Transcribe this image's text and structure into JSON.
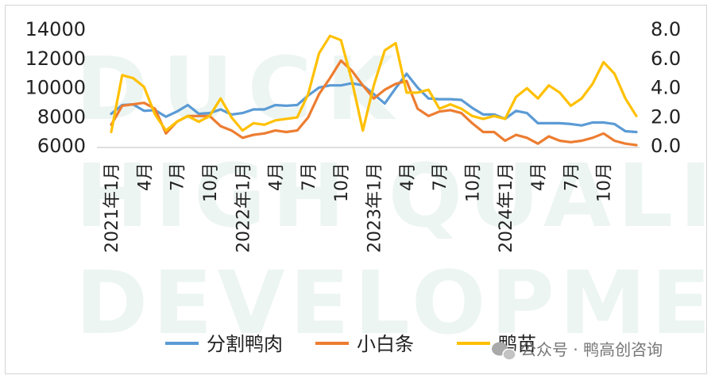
{
  "chart_data": {
    "type": "line",
    "title": "",
    "xlabel": "",
    "ylabel": "",
    "y_left": {
      "min": 6000,
      "max": 14000,
      "ticks": [
        "6000",
        "8000",
        "10000",
        "12000",
        "14000"
      ]
    },
    "y_right": {
      "min": 0,
      "max": 8,
      "ticks": [
        "0.0",
        "2.0",
        "4.0",
        "6.0",
        "8.0"
      ]
    },
    "x_tick_labels": [
      "2021年1月",
      "4月",
      "7月",
      "10月",
      "2022年1月",
      "4月",
      "7月",
      "10月",
      "2023年1月",
      "4月",
      "7月",
      "10月",
      "2024年1月",
      "4月",
      "7月",
      "10月"
    ],
    "x_tick_month_index": [
      0,
      3,
      6,
      9,
      12,
      15,
      18,
      21,
      24,
      27,
      30,
      33,
      36,
      39,
      42,
      45
    ],
    "months": 48,
    "legend_position": "bottom",
    "grid": false,
    "series": [
      {
        "name": "分割鸭肉",
        "axis": "left",
        "color": "#5b9bd5",
        "values": [
          8150,
          8750,
          8800,
          8350,
          8400,
          7950,
          8300,
          8750,
          8150,
          8200,
          8450,
          8100,
          8200,
          8450,
          8450,
          8750,
          8700,
          8750,
          9400,
          9950,
          10100,
          10100,
          10250,
          10100,
          9500,
          8850,
          9900,
          10900,
          9950,
          9200,
          9150,
          9150,
          9100,
          8550,
          8100,
          8100,
          7800,
          8350,
          8200,
          7500,
          7500,
          7500,
          7450,
          7350,
          7550,
          7550,
          7450,
          6950,
          6900
        ]
      },
      {
        "name": "小白条",
        "axis": "right",
        "color": "#ed7d31",
        "values": [
          1.4,
          2.7,
          2.8,
          2.9,
          2.5,
          0.8,
          1.6,
          2.0,
          2.0,
          2.0,
          1.3,
          1.0,
          0.5,
          0.7,
          0.8,
          1.0,
          0.9,
          1.0,
          1.9,
          3.5,
          4.6,
          5.8,
          5.1,
          4.1,
          3.2,
          3.8,
          4.2,
          4.4,
          2.5,
          2.0,
          2.3,
          2.4,
          2.2,
          1.5,
          0.9,
          0.9,
          0.3,
          0.7,
          0.5,
          0.1,
          0.6,
          0.3,
          0.2,
          0.3,
          0.5,
          0.8,
          0.3,
          0.1,
          0.0
        ]
      },
      {
        "name": "鸭苗",
        "axis": "right",
        "color": "#ffc000",
        "values": [
          0.9,
          4.8,
          4.6,
          4.0,
          2.1,
          1.0,
          1.6,
          2.0,
          1.6,
          2.0,
          3.2,
          1.9,
          1.0,
          1.5,
          1.4,
          1.7,
          1.8,
          1.9,
          3.5,
          6.3,
          7.5,
          7.2,
          4.4,
          1.0,
          4.1,
          6.5,
          7.0,
          3.6,
          3.6,
          3.8,
          2.5,
          2.8,
          2.5,
          2.0,
          1.8,
          2.0,
          1.8,
          3.3,
          3.9,
          3.2,
          4.1,
          3.6,
          2.7,
          3.2,
          4.2,
          5.7,
          4.9,
          3.2,
          2.0
        ]
      }
    ]
  },
  "watermark": {
    "lines": [
      "DUCK",
      "HIGH QUALITY",
      "DEVELOPMENT"
    ]
  },
  "credit": {
    "text": "公众号 · 鸭高创咨询",
    "icon": "wechat-icon"
  }
}
